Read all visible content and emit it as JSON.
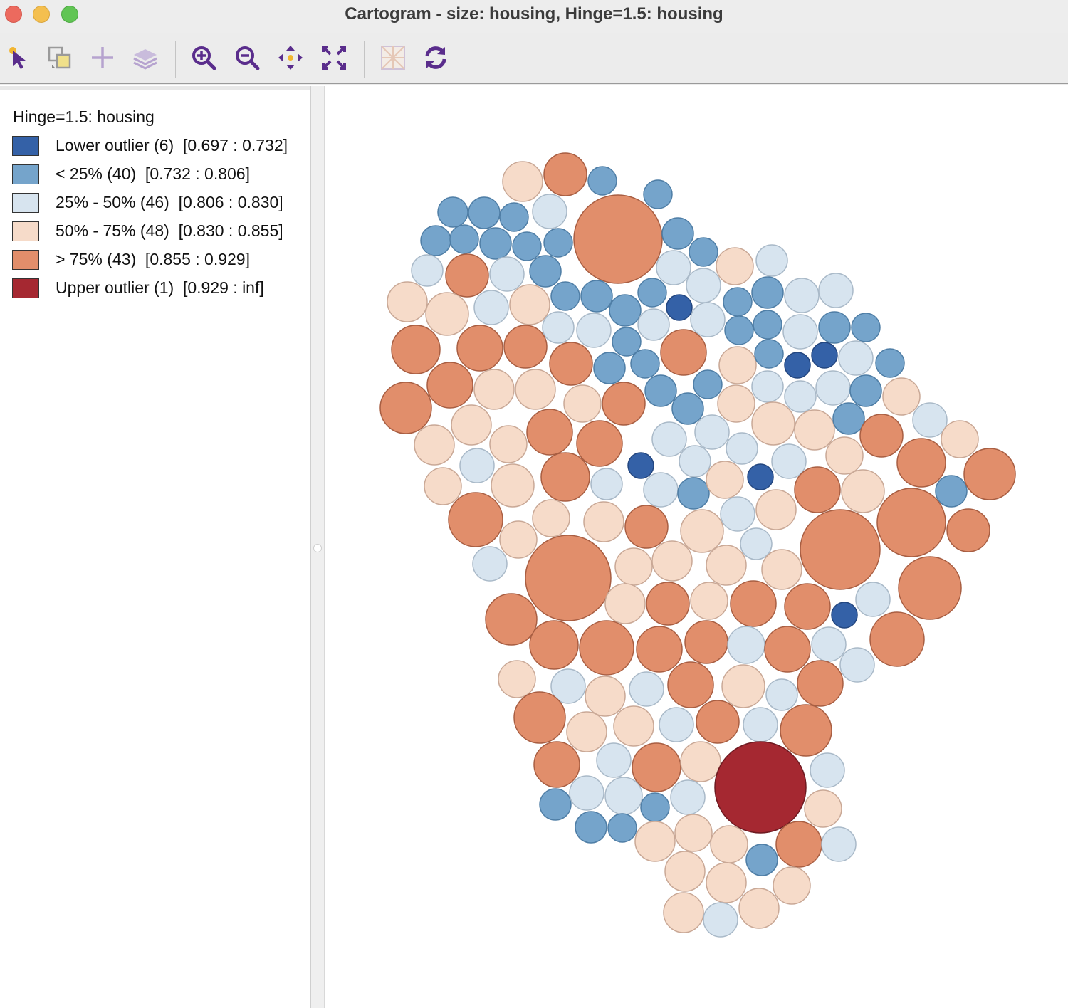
{
  "window": {
    "title": "Cartogram - size: housing, Hinge=1.5: housing"
  },
  "toolbar": {
    "tools": [
      "select-tool",
      "selection-shape-tool",
      "add-layer-tool",
      "layers-tool",
      "zoom-in-tool",
      "zoom-out-tool",
      "pan-tool",
      "fit-extent-tool",
      "basemap-tool",
      "refresh-tool"
    ]
  },
  "legend": {
    "title": "Hinge=1.5: housing",
    "items": [
      {
        "label": "Lower outlier (6)  [0.697 : 0.732]",
        "color": "#3461a7"
      },
      {
        "label": "< 25% (40)  [0.732 : 0.806]",
        "color": "#75a4cb"
      },
      {
        "label": "25% - 50% (46)  [0.806 : 0.830]",
        "color": "#d7e4ef"
      },
      {
        "label": "50% - 75% (48)  [0.830 : 0.855]",
        "color": "#f6dbc9"
      },
      {
        "label": "> 75% (43)  [0.855 : 0.929]",
        "color": "#e18e6b"
      },
      {
        "label": "Upper outlier (1)  [0.929 : inf]",
        "color": "#a52831"
      }
    ]
  },
  "colors": {
    "lower_outlier": "#3461a7",
    "below_25": "#75a4cb",
    "p25_50": "#d7e4ef",
    "p50_75": "#f6dbc9",
    "above_75": "#e18e6b",
    "upper_outlier": "#a52831"
  }
}
